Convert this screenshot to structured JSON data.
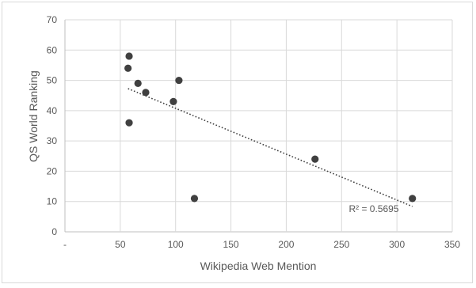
{
  "chart_data": {
    "type": "scatter",
    "title": "",
    "xlabel": "Wikipedia Web Mention",
    "ylabel": "QS World Ranking",
    "xlim": [
      0,
      350
    ],
    "ylim": [
      0,
      70
    ],
    "x_ticks": [
      0,
      50,
      100,
      150,
      200,
      250,
      300,
      350
    ],
    "x_tick_labels": [
      "-",
      "50",
      "100",
      "150",
      "200",
      "250",
      "300",
      "350"
    ],
    "y_ticks": [
      0,
      10,
      20,
      30,
      40,
      50,
      60,
      70
    ],
    "y_tick_labels": [
      "0",
      "10",
      "20",
      "30",
      "40",
      "50",
      "60",
      "70"
    ],
    "grid": true,
    "series": [
      {
        "points": [
          {
            "x": 58,
            "y": 58
          },
          {
            "x": 57,
            "y": 54
          },
          {
            "x": 66,
            "y": 49
          },
          {
            "x": 73,
            "y": 46
          },
          {
            "x": 103,
            "y": 50
          },
          {
            "x": 98,
            "y": 43
          },
          {
            "x": 58,
            "y": 36
          },
          {
            "x": 117,
            "y": 11
          },
          {
            "x": 226,
            "y": 24
          },
          {
            "x": 314,
            "y": 11
          }
        ],
        "color": "#404040"
      }
    ],
    "trendline": {
      "type": "linear",
      "x_range": [
        57,
        314
      ],
      "r_squared_label": "R² = 0.5695",
      "color": "#404040"
    }
  }
}
